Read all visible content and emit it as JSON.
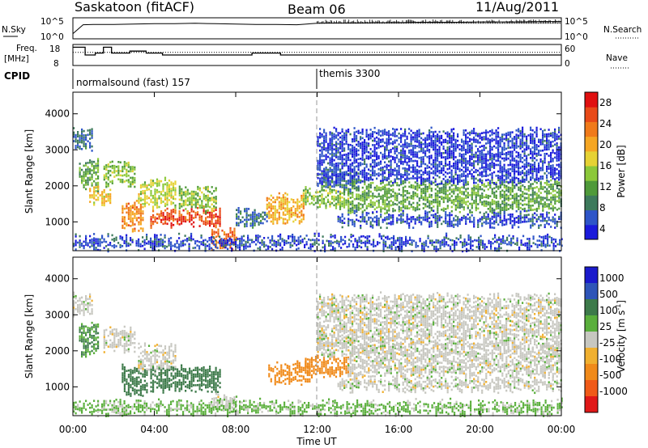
{
  "header": {
    "station": "Saskatoon (fitACF)",
    "beam": "Beam 06",
    "date": "11/Aug/2011"
  },
  "strip_labels": {
    "nsky": "N.Sky",
    "nsearch": "N.Search",
    "freq_line1": "Freq.",
    "freq_line2": "[MHz]",
    "nave": "Nave",
    "cpid": "CPID"
  },
  "cpid_modes": [
    {
      "label": "normalsound (fast) 157",
      "start_hour": 0
    },
    {
      "label": "themis 3300",
      "start_hour": 12
    }
  ],
  "colors": {
    "power": [
      "#1a1adb",
      "#2e55c8",
      "#3d7a5c",
      "#4f9a3a",
      "#8cc83a",
      "#e6d234",
      "#f5a623",
      "#f07a1a",
      "#e84a18",
      "#e01010"
    ],
    "velocity": [
      "#1a1acc",
      "#2e55b8",
      "#3d7a4a",
      "#5aaf3c",
      "#c7c7c0",
      "#f0b030",
      "#f08a1a",
      "#f05a18",
      "#e01818"
    ]
  },
  "chart_data": [
    {
      "type": "line",
      "title": "N.Sky / N.Search",
      "ylabel_left": "N.Sky",
      "ylabel_right": "N.Search",
      "yticks_left": [
        "10^5",
        "10^0"
      ],
      "yticks_right": [
        "10^5",
        "10^0"
      ],
      "x": [
        0.0,
        0.5,
        1,
        2,
        3,
        4,
        5,
        6,
        7,
        8,
        9,
        10,
        11,
        12,
        13,
        14,
        15,
        16,
        17,
        18,
        19,
        20,
        21,
        22,
        23,
        24
      ],
      "series": [
        {
          "name": "N.Sky",
          "values": [
            1,
            3.5,
            3.6,
            3.6,
            3.7,
            3.8,
            3.8,
            3.9,
            3.8,
            3.7,
            3.6,
            3.6,
            3.5,
            3.9,
            4.0,
            4.0,
            4.1,
            4.1,
            4.2,
            4.2,
            4.2,
            4.3,
            4.3,
            4.3,
            4.4,
            4.4
          ]
        }
      ]
    },
    {
      "type": "line",
      "title": "Freq. / Nave",
      "ylabel_left": "Freq. [MHz]",
      "ylabel_right": "Nave",
      "yticks_left": [
        "18",
        "8"
      ],
      "yticks_right": [
        "60",
        "0"
      ],
      "x": [
        0,
        0.6,
        0.6,
        1.1,
        1.1,
        1.5,
        1.5,
        1.9,
        1.9,
        2.8,
        2.8,
        3.6,
        3.6,
        4.4,
        4.4,
        8.8,
        8.8,
        10.2,
        10.2,
        12,
        12,
        24
      ],
      "series": [
        {
          "name": "Freq",
          "values": [
            17,
            17,
            13,
            13,
            14,
            14,
            17,
            17,
            14,
            14,
            15,
            15,
            14,
            14,
            13,
            13,
            14,
            14,
            13,
            13,
            13,
            13
          ]
        },
        {
          "name": "Nave",
          "values": [
            38,
            38,
            38,
            38,
            38,
            38,
            38,
            38,
            38,
            38,
            38,
            38,
            38,
            38,
            38,
            38,
            38,
            38,
            38,
            38,
            38,
            38
          ]
        }
      ]
    },
    {
      "type": "heatmap",
      "title": "Power",
      "xlabel": "",
      "ylabel": "Slant Range [km]",
      "colorbar_label": "Power [dB]",
      "colorbar_ticks": [
        4,
        8,
        12,
        16,
        20,
        24,
        28
      ],
      "xlim": [
        0,
        24
      ],
      "ylim": [
        200,
        4600
      ],
      "yticks": [
        1000,
        2000,
        3000,
        4000
      ],
      "blobs": [
        {
          "h0": 0.0,
          "h1": 0.9,
          "r0": 3000,
          "r1": 3500,
          "v": 8
        },
        {
          "h0": 0.3,
          "h1": 1.2,
          "r0": 1900,
          "r1": 2700,
          "v": 12
        },
        {
          "h0": 0.8,
          "h1": 1.8,
          "r0": 1500,
          "r1": 1900,
          "v": 18
        },
        {
          "h0": 1.5,
          "h1": 3.0,
          "r0": 2000,
          "r1": 2600,
          "v": 14
        },
        {
          "h0": 2.4,
          "h1": 3.4,
          "r0": 800,
          "r1": 1500,
          "v": 22
        },
        {
          "h0": 3.2,
          "h1": 5.0,
          "r0": 1400,
          "r1": 2100,
          "v": 16
        },
        {
          "h0": 3.8,
          "h1": 7.2,
          "r0": 900,
          "r1": 1300,
          "v": 26
        },
        {
          "h0": 5.2,
          "h1": 7.0,
          "r0": 1300,
          "r1": 1900,
          "v": 14
        },
        {
          "h0": 6.8,
          "h1": 8.0,
          "r0": 300,
          "r1": 700,
          "v": 24
        },
        {
          "h0": 8.0,
          "h1": 9.5,
          "r0": 900,
          "r1": 1300,
          "v": 8
        },
        {
          "h0": 9.5,
          "h1": 11.3,
          "r0": 1000,
          "r1": 1700,
          "v": 20
        },
        {
          "h0": 11.3,
          "h1": 13.5,
          "r0": 1400,
          "r1": 1900,
          "v": 14
        },
        {
          "h0": 12.0,
          "h1": 14.0,
          "r0": 1900,
          "r1": 2400,
          "v": 8
        },
        {
          "h0": 13.5,
          "h1": 24.0,
          "r0": 1300,
          "r1": 2100,
          "v": 12
        },
        {
          "h0": 13.0,
          "h1": 24.0,
          "r0": 900,
          "r1": 1200,
          "v": 6
        },
        {
          "h0": 0.0,
          "h1": 24.0,
          "r0": 250,
          "r1": 550,
          "v": 6
        },
        {
          "h0": 12.0,
          "h1": 24.0,
          "r0": 2100,
          "r1": 3500,
          "v": 5
        }
      ]
    },
    {
      "type": "heatmap",
      "title": "Velocity",
      "xlabel": "Time UT",
      "ylabel": "Slant Range [km]",
      "colorbar_label": "Velocity [m s^-1]",
      "colorbar_ticks": [
        1000,
        500,
        100,
        25,
        -25,
        -100,
        -500,
        -1000
      ],
      "xlim": [
        0,
        24
      ],
      "ylim": [
        200,
        4600
      ],
      "yticks": [
        1000,
        2000,
        3000,
        4000
      ],
      "xticks": [
        "00:00",
        "04:00",
        "08:00",
        "12:00",
        "16:00",
        "20:00",
        "00:00"
      ],
      "blobs": [
        {
          "h0": 0.0,
          "h1": 0.9,
          "r0": 3000,
          "r1": 3500,
          "v": 0
        },
        {
          "h0": 0.3,
          "h1": 1.2,
          "r0": 1900,
          "r1": 2700,
          "v": 100
        },
        {
          "h0": 1.5,
          "h1": 3.0,
          "r0": 2000,
          "r1": 2600,
          "v": 0
        },
        {
          "h0": 2.4,
          "h1": 3.6,
          "r0": 800,
          "r1": 1500,
          "v": 200
        },
        {
          "h0": 3.2,
          "h1": 5.0,
          "r0": 1400,
          "r1": 2100,
          "v": 0
        },
        {
          "h0": 3.8,
          "h1": 7.2,
          "r0": 900,
          "r1": 1500,
          "v": 300
        },
        {
          "h0": 6.8,
          "h1": 8.0,
          "r0": 300,
          "r1": 700,
          "v": 0
        },
        {
          "h0": 9.6,
          "h1": 11.6,
          "r0": 1100,
          "r1": 1600,
          "v": -200
        },
        {
          "h0": 11.4,
          "h1": 13.5,
          "r0": 1300,
          "r1": 1800,
          "v": -200
        },
        {
          "h0": 12.0,
          "h1": 14.0,
          "r0": 1900,
          "r1": 2400,
          "v": 0
        },
        {
          "h0": 13.5,
          "h1": 24.0,
          "r0": 1300,
          "r1": 2100,
          "v": 0
        },
        {
          "h0": 13.0,
          "h1": 24.0,
          "r0": 900,
          "r1": 1200,
          "v": 0
        },
        {
          "h0": 0.0,
          "h1": 24.0,
          "r0": 250,
          "r1": 550,
          "v": 40
        },
        {
          "h0": 12.0,
          "h1": 24.0,
          "r0": 2100,
          "r1": 3500,
          "v": 0
        }
      ]
    }
  ]
}
